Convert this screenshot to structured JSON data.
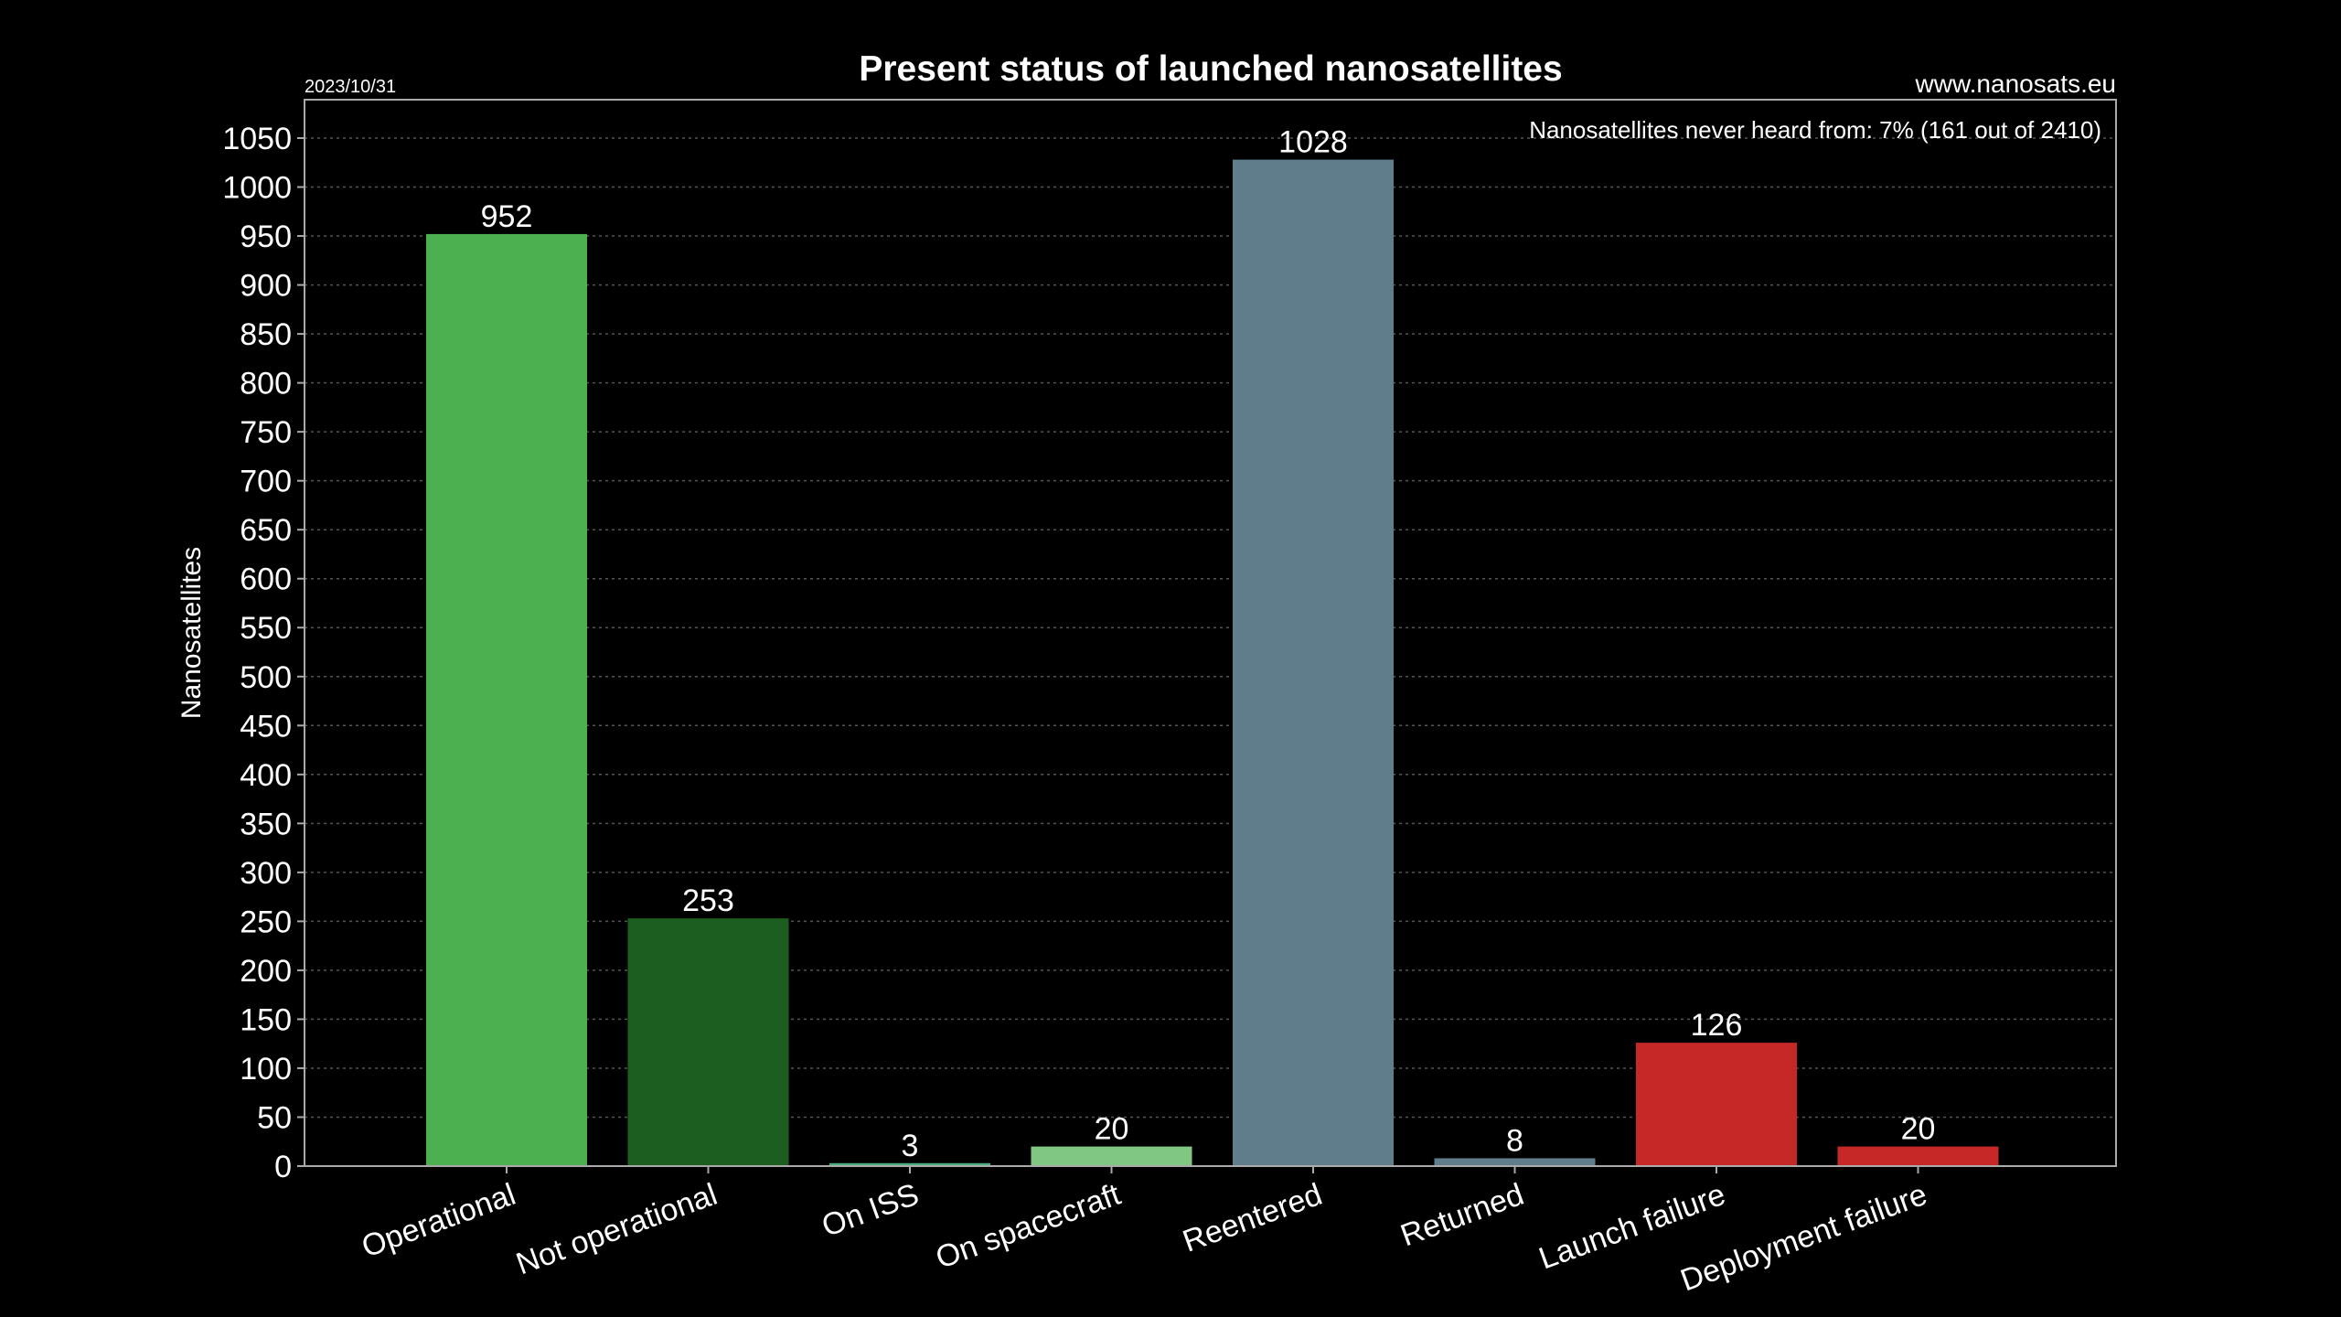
{
  "header": {
    "date": "2023/10/31",
    "website": "www.nanosats.eu"
  },
  "annotation": "Nanosatellites never heard from: 7% (161 out of 2410)",
  "colors": {
    "background": "#000000",
    "frame": "#aaaaaa",
    "grid": "#555555",
    "operational": "#4caf50",
    "not_operational": "#1b5e20",
    "on_iss": "#4caf80",
    "on_spacecraft": "#81c784",
    "reentered": "#607d8b",
    "returned": "#607d8b",
    "launch_failure": "#c62828",
    "deployment_failure": "#c62828"
  },
  "chart_data": {
    "type": "bar",
    "title": "Present status of launched nanosatellites",
    "xlabel": "",
    "ylabel": "Nanosatellites",
    "categories": [
      "Operational",
      "Not operational",
      "On ISS",
      "On spacecraft",
      "Reentered",
      "Returned",
      "Launch failure",
      "Deployment failure"
    ],
    "values": [
      952,
      253,
      3,
      20,
      1028,
      8,
      126,
      20
    ],
    "value_labels": [
      "952",
      "253",
      "3",
      "20",
      "1028",
      "8",
      "126",
      "20"
    ],
    "bar_colors": [
      "#4caf50",
      "#1b5e20",
      "#4caf80",
      "#81c784",
      "#607d8b",
      "#607d8b",
      "#c62828",
      "#c62828"
    ],
    "ylim": [
      0,
      1085
    ],
    "yticks": [
      0,
      50,
      100,
      150,
      200,
      250,
      300,
      350,
      400,
      450,
      500,
      550,
      600,
      650,
      700,
      750,
      800,
      850,
      900,
      950,
      1000,
      1050
    ],
    "ytick_labels": [
      "0",
      "50",
      "100",
      "150",
      "200",
      "250",
      "300",
      "350",
      "400",
      "450",
      "500",
      "550",
      "600",
      "650",
      "700",
      "750",
      "800",
      "850",
      "900",
      "950",
      "1000",
      "1050"
    ],
    "grid": true,
    "x_tick_rotation_deg": 20
  }
}
